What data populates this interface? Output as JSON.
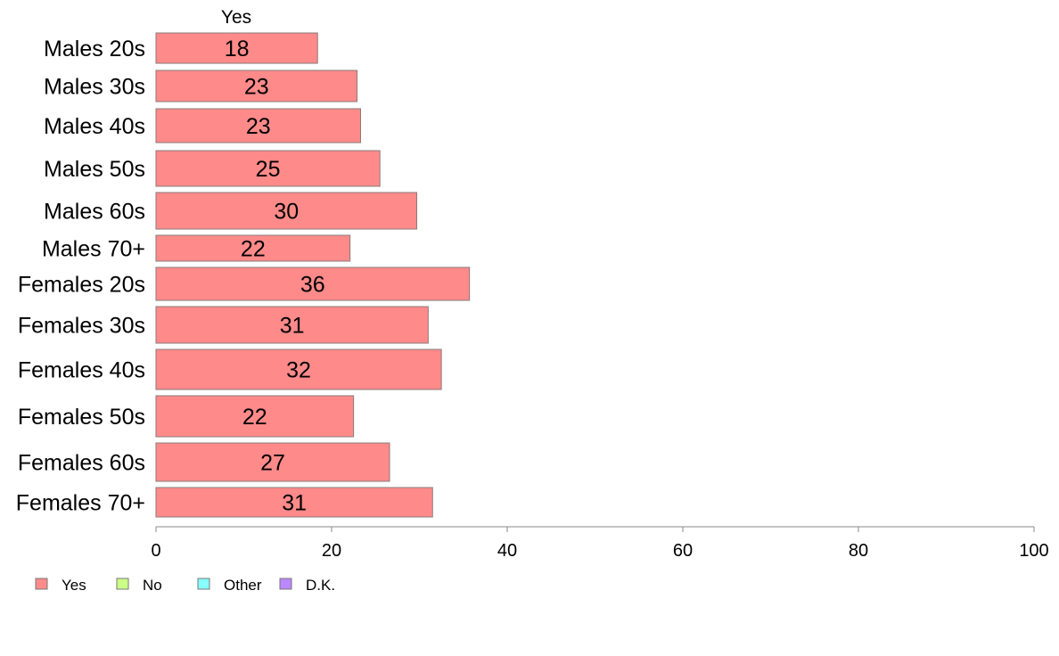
{
  "chart_data": {
    "type": "bar",
    "orientation": "horizontal",
    "categories": [
      "Males 20s",
      "Males 30s",
      "Males 40s",
      "Males 50s",
      "Males 60s",
      "Males 70+",
      "Females 20s",
      "Females 30s",
      "Females 40s",
      "Females 50s",
      "Females 60s",
      "Females 70+"
    ],
    "series": [
      {
        "name": "Yes",
        "values": [
          18.4,
          22.9,
          23.3,
          25.5,
          29.7,
          22.1,
          35.7,
          31.0,
          32.5,
          22.5,
          26.6,
          31.5
        ],
        "color": "#ff8a8a"
      }
    ],
    "data_labels": [
      "18",
      "23",
      "23",
      "25",
      "30",
      "22",
      "36",
      "31",
      "32",
      "22",
      "27",
      "31"
    ],
    "column_header": "Yes",
    "xlim": [
      0,
      100
    ],
    "xticks": [
      "0",
      "20",
      "40",
      "60",
      "80",
      "100"
    ],
    "grid": false,
    "legend": {
      "placement": "bottom-left",
      "items": [
        {
          "label": "Yes",
          "color": "#ff8a8a"
        },
        {
          "label": "No",
          "color": "#ccff88"
        },
        {
          "label": "Other",
          "color": "#88ffff"
        },
        {
          "label": "D.K.",
          "color": "#bb88ff"
        }
      ]
    }
  }
}
